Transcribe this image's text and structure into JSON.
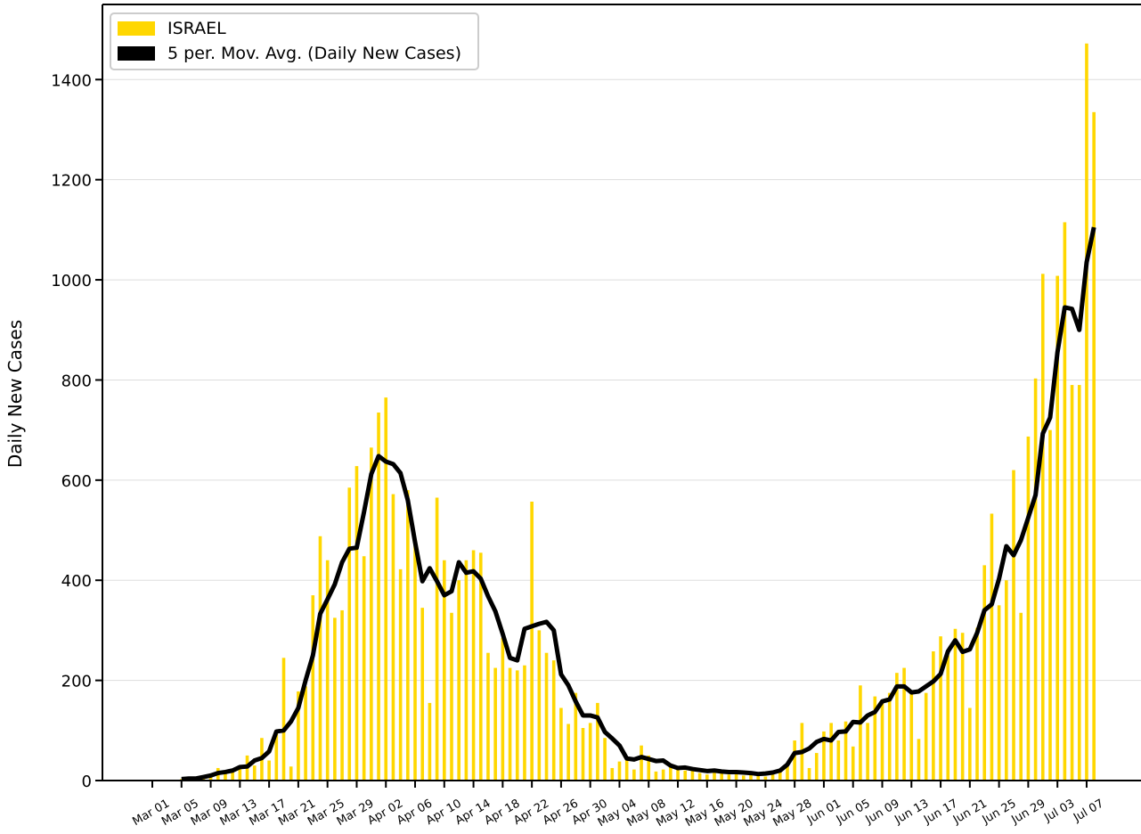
{
  "chart_data": {
    "type": "bar",
    "ylabel": "Daily New Cases",
    "ylim": [
      0,
      1550
    ],
    "yticks": [
      0,
      200,
      400,
      600,
      800,
      1000,
      1200,
      1400
    ],
    "grid": true,
    "legend": "upper left",
    "categories": [
      "Mar 01",
      null,
      null,
      null,
      "Mar 05",
      null,
      null,
      null,
      "Mar 09",
      null,
      null,
      null,
      "Mar 13",
      null,
      null,
      null,
      "Mar 17",
      null,
      null,
      null,
      "Mar 21",
      null,
      null,
      null,
      "Mar 25",
      null,
      null,
      null,
      "Mar 29",
      null,
      null,
      null,
      "Apr 02",
      null,
      null,
      null,
      "Apr 06",
      null,
      null,
      null,
      "Apr 10",
      null,
      null,
      null,
      "Apr 14",
      null,
      null,
      null,
      "Apr 18",
      null,
      null,
      null,
      "Apr 22",
      null,
      null,
      null,
      "Apr 26",
      null,
      null,
      null,
      "Apr 30",
      null,
      null,
      null,
      "May 04",
      null,
      null,
      null,
      "May 08",
      null,
      null,
      null,
      "May 12",
      null,
      null,
      null,
      "May 16",
      null,
      null,
      null,
      "May 20",
      null,
      null,
      null,
      "May 24",
      null,
      null,
      null,
      "May 28",
      null,
      null,
      null,
      "Jun 01",
      null,
      null,
      null,
      "Jun 05",
      null,
      null,
      null,
      "Jun 09",
      null,
      null,
      null,
      "Jun 13",
      null,
      null,
      null,
      "Jun 17",
      null,
      null,
      null,
      "Jun 21",
      null,
      null,
      null,
      "Jun 25",
      null,
      null,
      null,
      "Jun 29",
      null,
      null,
      null,
      "Jul 03",
      null,
      null,
      null,
      "Jul 07",
      null
    ],
    "series": [
      {
        "name": "ISRAEL",
        "color": "#FFD700",
        "type": "bar",
        "values": [
          0,
          0,
          0,
          0,
          3,
          5,
          3,
          10,
          12,
          25,
          15,
          20,
          30,
          50,
          30,
          85,
          40,
          95,
          245,
          28,
          178,
          188,
          370,
          488,
          440,
          325,
          340,
          585,
          628,
          448,
          665,
          735,
          765,
          572,
          422,
          580,
          475,
          345,
          155,
          565,
          440,
          335,
          400,
          440,
          460,
          455,
          255,
          225,
          285,
          225,
          220,
          230,
          557,
          300,
          255,
          240,
          145,
          113,
          175,
          105,
          115,
          155,
          85,
          25,
          38,
          45,
          22,
          70,
          50,
          18,
          22,
          30,
          28,
          20,
          22,
          15,
          12,
          20,
          15,
          12,
          15,
          10,
          13,
          10,
          8,
          15,
          20,
          35,
          80,
          115,
          25,
          55,
          98,
          115,
          80,
          118,
          68,
          190,
          115,
          168,
          155,
          175,
          215,
          225,
          175,
          83,
          175,
          258,
          288,
          250,
          303,
          295,
          145,
          305,
          430,
          533,
          350,
          400,
          620,
          335,
          687,
          803,
          1012,
          700,
          1008,
          1115,
          790,
          790,
          1472,
          1335
        ]
      },
      {
        "name": "5 per. Mov. Avg. (Daily New Cases)",
        "color": "#000000",
        "type": "line",
        "values": [
          null,
          null,
          null,
          null,
          3,
          4,
          4,
          7,
          10,
          15,
          17,
          20,
          27,
          28,
          40,
          45,
          58,
          98,
          100,
          118,
          145,
          200,
          250,
          333,
          362,
          392,
          436,
          463,
          465,
          536,
          612,
          648,
          637,
          632,
          614,
          560,
          476,
          398,
          424,
          398,
          370,
          378,
          436,
          415,
          418,
          403,
          368,
          338,
          293,
          245,
          240,
          303,
          308,
          313,
          317,
          300,
          212,
          190,
          158,
          130,
          130,
          126,
          97,
          84,
          70,
          44,
          42,
          47,
          43,
          39,
          40,
          30,
          25,
          26,
          23,
          21,
          19,
          20,
          18,
          17,
          17,
          16,
          15,
          13,
          14,
          16,
          20,
          32,
          55,
          57,
          64,
          77,
          83,
          80,
          97,
          98,
          117,
          116,
          130,
          137,
          158,
          162,
          188,
          188,
          176,
          178,
          188,
          198,
          213,
          258,
          280,
          257,
          262,
          295,
          340,
          352,
          403,
          468,
          450,
          480,
          525,
          570,
          693,
          725,
          855,
          945,
          942,
          900,
          1035,
          1105
        ]
      }
    ]
  }
}
